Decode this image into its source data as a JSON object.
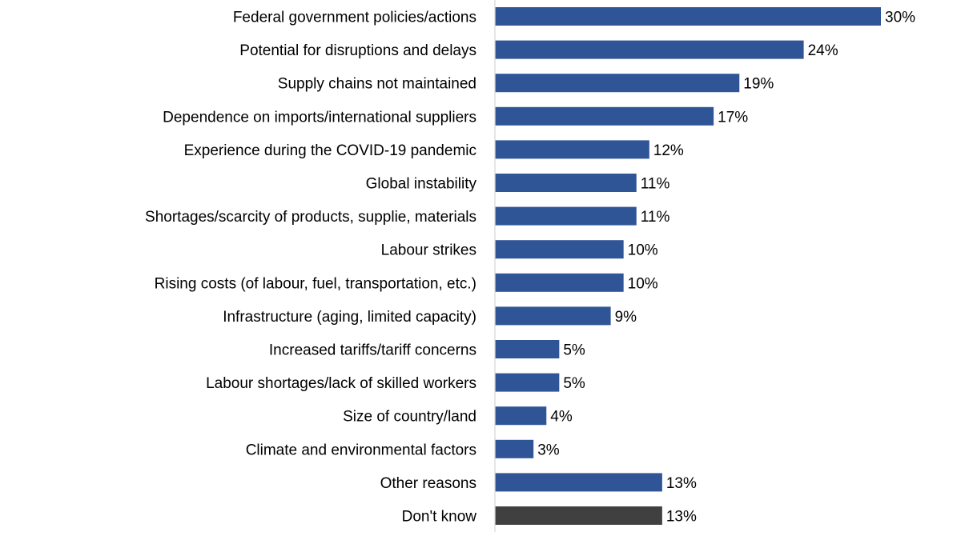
{
  "chart_data": {
    "type": "bar",
    "orientation": "horizontal",
    "title": "",
    "xlabel": "",
    "ylabel": "",
    "xlim": [
      0,
      30
    ],
    "grid": false,
    "value_suffix": "%",
    "categories": [
      "Federal government policies/actions",
      "Potential for disruptions and delays",
      "Supply chains not maintained",
      "Dependence on imports/international suppliers",
      "Experience during the COVID-19 pandemic",
      "Global instability",
      "Shortages/scarcity of products, supplie, materials",
      "Labour strikes",
      "Rising costs (of labour, fuel, transportation, etc.)",
      "Infrastructure (aging, limited capacity)",
      "Increased tariffs/tariff concerns",
      "Labour shortages/lack of skilled workers",
      "Size of country/land",
      "Climate and environmental factors",
      "Other reasons",
      "Don't know"
    ],
    "values": [
      30,
      24,
      19,
      17,
      12,
      11,
      11,
      10,
      10,
      9,
      5,
      5,
      4,
      3,
      13,
      13
    ],
    "data_labels": [
      "30%",
      "24%",
      "19%",
      "17%",
      "12%",
      "11%",
      "11%",
      "10%",
      "10%",
      "9%",
      "5%",
      "5%",
      "4%",
      "3%",
      "13%",
      "13%"
    ],
    "colors": [
      "#2F5597",
      "#2F5597",
      "#2F5597",
      "#2F5597",
      "#2F5597",
      "#2F5597",
      "#2F5597",
      "#2F5597",
      "#2F5597",
      "#2F5597",
      "#2F5597",
      "#2F5597",
      "#2F5597",
      "#2F5597",
      "#2F5597",
      "#404040"
    ],
    "axis_color": "#D9D9D9"
  }
}
